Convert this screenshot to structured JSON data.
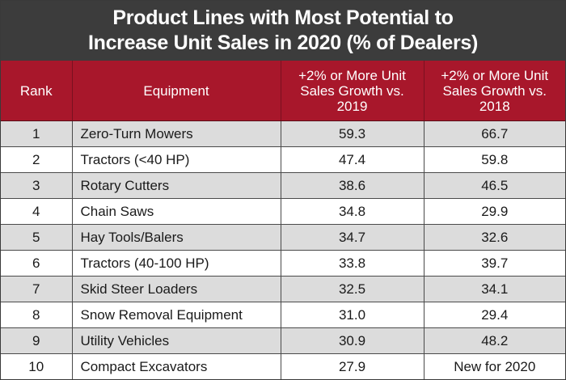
{
  "chart_data": {
    "type": "table",
    "title_lines": [
      "Product Lines with Most Potential to",
      "Increase Unit Sales in 2020 (% of Dealers)"
    ],
    "columns": [
      "Rank",
      "Equipment",
      "+2% or More Unit Sales Growth vs. 2019",
      "+2% or More Unit Sales Growth vs. 2018"
    ],
    "rows": [
      {
        "rank": "1",
        "equipment": "Zero-Turn Mowers",
        "vs2019": "59.3",
        "vs2018": "66.7"
      },
      {
        "rank": "2",
        "equipment": "Tractors (<40 HP)",
        "vs2019": "47.4",
        "vs2018": "59.8"
      },
      {
        "rank": "3",
        "equipment": "Rotary Cutters",
        "vs2019": "38.6",
        "vs2018": "46.5"
      },
      {
        "rank": "4",
        "equipment": "Chain Saws",
        "vs2019": "34.8",
        "vs2018": "29.9"
      },
      {
        "rank": "5",
        "equipment": "Hay Tools/Balers",
        "vs2019": "34.7",
        "vs2018": "32.6"
      },
      {
        "rank": "6",
        "equipment": "Tractors (40-100 HP)",
        "vs2019": "33.8",
        "vs2018": "39.7"
      },
      {
        "rank": "7",
        "equipment": "Skid Steer Loaders",
        "vs2019": "32.5",
        "vs2018": "34.1"
      },
      {
        "rank": "8",
        "equipment": "Snow Removal Equipment",
        "vs2019": "31.0",
        "vs2018": "29.4"
      },
      {
        "rank": "9",
        "equipment": "Utility Vehicles",
        "vs2019": "30.9",
        "vs2018": "48.2"
      },
      {
        "rank": "10",
        "equipment": "Compact Excavators",
        "vs2019": "27.9",
        "vs2018": "New for 2020"
      }
    ]
  },
  "colors": {
    "title_background": "#3c3c3c",
    "header_background": "#a8172b",
    "stripe": "#dcdcdc"
  }
}
